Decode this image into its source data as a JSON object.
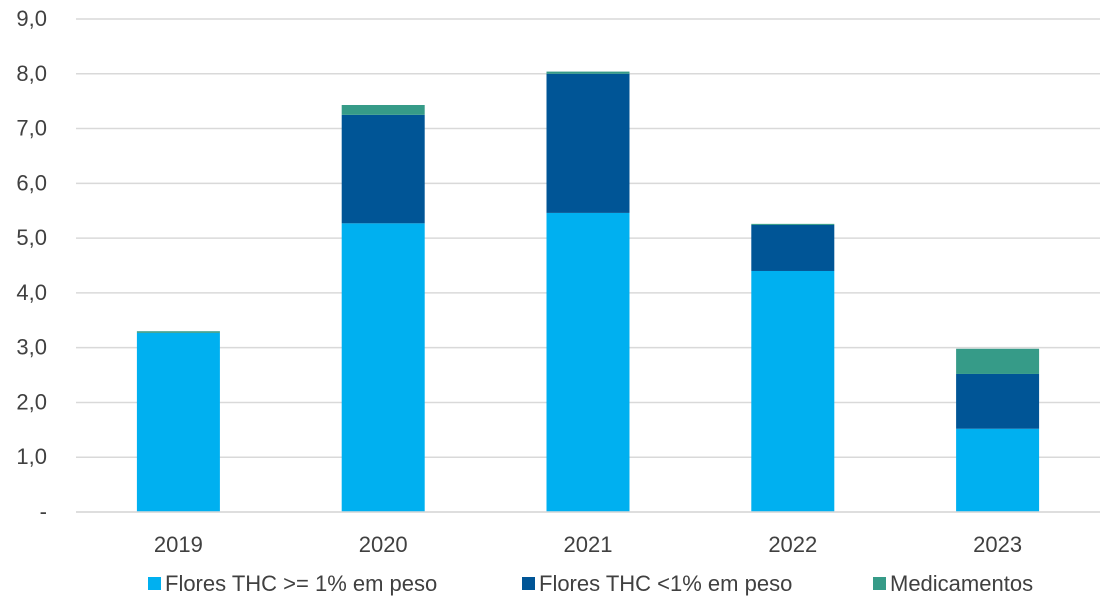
{
  "chart_data": {
    "type": "bar",
    "stacked": true,
    "categories": [
      "2019",
      "2020",
      "2021",
      "2022",
      "2023"
    ],
    "series": [
      {
        "name": "Flores THC >= 1% em peso",
        "color": "#00b0f0",
        "values": [
          3.27,
          5.27,
          5.46,
          4.4,
          1.52
        ]
      },
      {
        "name": "Flores THC <1% em peso",
        "color": "#005596",
        "values": [
          0.0,
          1.98,
          2.54,
          0.84,
          1.0
        ]
      },
      {
        "name": "Medicamentos",
        "color": "#369b88",
        "values": [
          0.03,
          0.18,
          0.04,
          0.02,
          0.46
        ]
      }
    ],
    "ylim": [
      0,
      9
    ],
    "y_ticks": [
      {
        "value": 0,
        "label": "-"
      },
      {
        "value": 1,
        "label": "1,0"
      },
      {
        "value": 2,
        "label": "2,0"
      },
      {
        "value": 3,
        "label": "3,0"
      },
      {
        "value": 4,
        "label": "4,0"
      },
      {
        "value": 5,
        "label": "5,0"
      },
      {
        "value": 6,
        "label": "6,0"
      },
      {
        "value": 7,
        "label": "7,0"
      },
      {
        "value": 8,
        "label": "8,0"
      },
      {
        "value": 9,
        "label": "9,0"
      }
    ],
    "grid": true,
    "gridline_color": "#d9d9d9",
    "legend_position": "bottom",
    "title": "",
    "xlabel": "",
    "ylabel": ""
  }
}
